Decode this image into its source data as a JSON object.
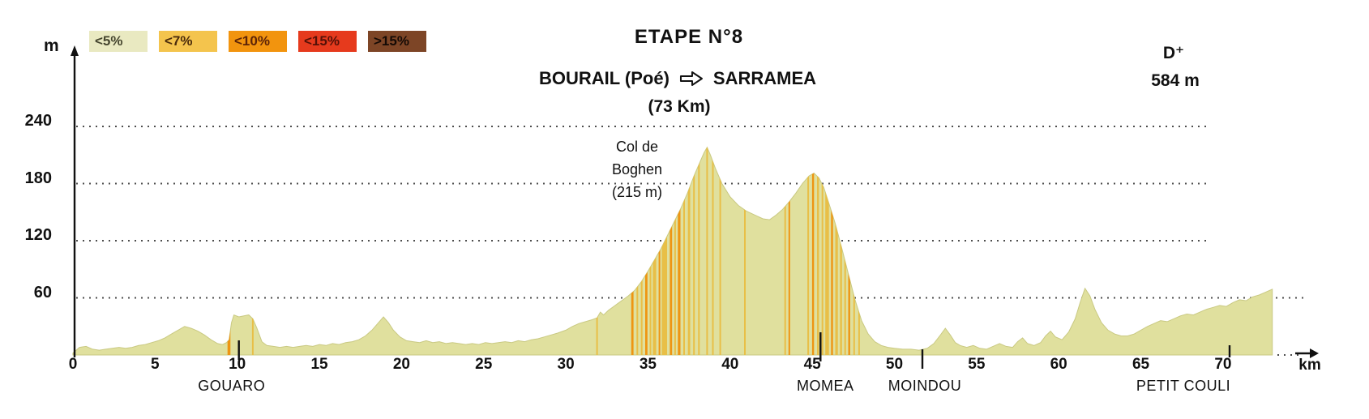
{
  "header": {
    "stage": "ETAPE N°8",
    "from": "BOURAIL (Poé)",
    "to": "SARRAMEA",
    "distance": "(73 Km)"
  },
  "elevation_gain": {
    "label": "D⁺",
    "value": "584 m"
  },
  "legend": {
    "items": [
      {
        "label": "<5%",
        "color": "#e9e9c1",
        "text_color": "#45452e"
      },
      {
        "label": "<7%",
        "color": "#f4c44d",
        "text_color": "#4b2c0c"
      },
      {
        "label": "<10%",
        "color": "#f2940e",
        "text_color": "#5d2408"
      },
      {
        "label": "<15%",
        "color": "#e63a1d",
        "text_color": "#551108"
      },
      {
        "label": ">15%",
        "color": "#7d4526",
        "text_color": "#140a05"
      }
    ]
  },
  "axes": {
    "y_unit": "m",
    "x_unit": "km"
  },
  "annotation": {
    "lines": [
      "Col de",
      "Boghen",
      "(215 m)"
    ]
  },
  "places": [
    {
      "name": "GOUARO",
      "km": 10.1
    },
    {
      "name": "MOMEA",
      "km": 45.5
    },
    {
      "name": "MOINDOU",
      "km": 51.7
    },
    {
      "name": "PETIT COULI",
      "km": 70.4
    }
  ],
  "chart_data": {
    "type": "area",
    "title": "ETAPE N°8 — BOURAIL (Poé) → SARRAMEA (73 Km)",
    "xlabel": "km",
    "ylabel": "m",
    "xlim": [
      0,
      73
    ],
    "ylim": [
      0,
      260
    ],
    "x_ticks": [
      0,
      5,
      10,
      15,
      20,
      25,
      30,
      35,
      40,
      45,
      50,
      55,
      60,
      65,
      70
    ],
    "y_ticks": [
      60,
      120,
      180,
      240
    ],
    "grid": "dotted horizontal",
    "legend_position": "top-left",
    "area_color": "#e0e09e",
    "area_edge_color": "#c9c982",
    "stripe_colors": {
      "g": "#e8bf47",
      "o": "#ee9512"
    },
    "summit": {
      "name": "Col de Boghen",
      "elevation_m": 215,
      "km": 38.5
    },
    "total_climb_m": 584,
    "profile_km_m": [
      [
        0,
        2
      ],
      [
        0.4,
        8
      ],
      [
        0.8,
        9
      ],
      [
        1.2,
        6
      ],
      [
        1.6,
        5
      ],
      [
        2,
        6
      ],
      [
        2.4,
        7
      ],
      [
        2.8,
        8
      ],
      [
        3.2,
        7
      ],
      [
        3.6,
        8
      ],
      [
        4,
        10
      ],
      [
        4.4,
        11
      ],
      [
        4.8,
        13
      ],
      [
        5.2,
        15
      ],
      [
        5.6,
        18
      ],
      [
        6,
        22
      ],
      [
        6.4,
        26
      ],
      [
        6.8,
        30
      ],
      [
        7.2,
        28
      ],
      [
        7.6,
        25
      ],
      [
        8,
        21
      ],
      [
        8.4,
        16
      ],
      [
        8.8,
        12
      ],
      [
        9.1,
        11
      ],
      [
        9.35,
        13
      ],
      [
        9.5,
        16
      ],
      [
        9.65,
        34
      ],
      [
        9.8,
        42
      ],
      [
        10.1,
        40
      ],
      [
        10.4,
        41
      ],
      [
        10.7,
        42
      ],
      [
        10.95,
        38
      ],
      [
        11.2,
        28
      ],
      [
        11.5,
        14
      ],
      [
        11.8,
        10
      ],
      [
        12.2,
        9
      ],
      [
        12.6,
        8
      ],
      [
        13,
        9
      ],
      [
        13.4,
        8
      ],
      [
        13.8,
        9
      ],
      [
        14.2,
        10
      ],
      [
        14.6,
        9
      ],
      [
        15,
        11
      ],
      [
        15.4,
        10
      ],
      [
        15.8,
        12
      ],
      [
        16.2,
        11
      ],
      [
        16.6,
        13
      ],
      [
        17,
        14
      ],
      [
        17.4,
        16
      ],
      [
        17.8,
        20
      ],
      [
        18.2,
        26
      ],
      [
        18.6,
        34
      ],
      [
        18.9,
        40
      ],
      [
        19.2,
        34
      ],
      [
        19.5,
        26
      ],
      [
        19.9,
        19
      ],
      [
        20.3,
        15
      ],
      [
        20.7,
        14
      ],
      [
        21.1,
        13
      ],
      [
        21.5,
        15
      ],
      [
        21.9,
        13
      ],
      [
        22.3,
        14
      ],
      [
        22.7,
        12
      ],
      [
        23.1,
        13
      ],
      [
        23.5,
        12
      ],
      [
        23.9,
        11
      ],
      [
        24.3,
        12
      ],
      [
        24.7,
        11
      ],
      [
        25.1,
        13
      ],
      [
        25.5,
        12
      ],
      [
        25.9,
        13
      ],
      [
        26.3,
        14
      ],
      [
        26.7,
        13
      ],
      [
        27.1,
        15
      ],
      [
        27.5,
        14
      ],
      [
        27.9,
        16
      ],
      [
        28.3,
        17
      ],
      [
        28.7,
        19
      ],
      [
        29.1,
        21
      ],
      [
        29.5,
        23
      ],
      [
        30,
        26
      ],
      [
        30.4,
        30
      ],
      [
        30.8,
        33
      ],
      [
        31.2,
        35
      ],
      [
        31.6,
        37
      ],
      [
        31.9,
        39
      ],
      [
        32.1,
        45
      ],
      [
        32.3,
        42
      ],
      [
        32.6,
        47
      ],
      [
        33,
        52
      ],
      [
        33.4,
        57
      ],
      [
        33.8,
        62
      ],
      [
        34.2,
        68
      ],
      [
        34.6,
        77
      ],
      [
        35,
        88
      ],
      [
        35.4,
        100
      ],
      [
        35.8,
        112
      ],
      [
        36.2,
        126
      ],
      [
        36.6,
        140
      ],
      [
        37,
        154
      ],
      [
        37.4,
        170
      ],
      [
        37.8,
        188
      ],
      [
        38.1,
        200
      ],
      [
        38.4,
        212
      ],
      [
        38.6,
        218
      ],
      [
        38.8,
        210
      ],
      [
        39.1,
        196
      ],
      [
        39.5,
        180
      ],
      [
        40,
        166
      ],
      [
        40.5,
        157
      ],
      [
        41,
        151
      ],
      [
        41.5,
        147
      ],
      [
        42,
        143
      ],
      [
        42.4,
        142
      ],
      [
        42.8,
        147
      ],
      [
        43.2,
        153
      ],
      [
        43.6,
        161
      ],
      [
        44,
        170
      ],
      [
        44.4,
        180
      ],
      [
        44.8,
        188
      ],
      [
        45.1,
        191
      ],
      [
        45.4,
        186
      ],
      [
        45.7,
        176
      ],
      [
        46,
        160
      ],
      [
        46.4,
        138
      ],
      [
        46.8,
        112
      ],
      [
        47.2,
        85
      ],
      [
        47.6,
        58
      ],
      [
        48,
        36
      ],
      [
        48.4,
        22
      ],
      [
        48.8,
        14
      ],
      [
        49.2,
        10
      ],
      [
        49.6,
        8
      ],
      [
        50,
        7
      ],
      [
        50.5,
        6
      ],
      [
        51,
        6
      ],
      [
        51.5,
        5
      ],
      [
        52,
        7
      ],
      [
        52.4,
        12
      ],
      [
        52.8,
        21
      ],
      [
        53.1,
        28
      ],
      [
        53.4,
        21
      ],
      [
        53.7,
        13
      ],
      [
        54,
        10
      ],
      [
        54.4,
        8
      ],
      [
        54.8,
        10
      ],
      [
        55.2,
        7
      ],
      [
        55.6,
        6
      ],
      [
        56,
        9
      ],
      [
        56.4,
        12
      ],
      [
        56.8,
        9
      ],
      [
        57.2,
        8
      ],
      [
        57.5,
        14
      ],
      [
        57.8,
        18
      ],
      [
        58.1,
        12
      ],
      [
        58.5,
        10
      ],
      [
        58.9,
        13
      ],
      [
        59.2,
        20
      ],
      [
        59.5,
        25
      ],
      [
        59.8,
        19
      ],
      [
        60.2,
        16
      ],
      [
        60.6,
        24
      ],
      [
        61,
        38
      ],
      [
        61.3,
        55
      ],
      [
        61.6,
        70
      ],
      [
        61.9,
        62
      ],
      [
        62.2,
        48
      ],
      [
        62.6,
        34
      ],
      [
        63,
        26
      ],
      [
        63.4,
        22
      ],
      [
        63.8,
        20
      ],
      [
        64.2,
        20
      ],
      [
        64.6,
        22
      ],
      [
        65,
        26
      ],
      [
        65.4,
        30
      ],
      [
        65.8,
        33
      ],
      [
        66.2,
        36
      ],
      [
        66.6,
        35
      ],
      [
        67,
        38
      ],
      [
        67.4,
        41
      ],
      [
        67.8,
        43
      ],
      [
        68.2,
        42
      ],
      [
        68.6,
        45
      ],
      [
        69,
        48
      ],
      [
        69.4,
        50
      ],
      [
        69.8,
        52
      ],
      [
        70.2,
        51
      ],
      [
        70.6,
        55
      ],
      [
        71,
        58
      ],
      [
        71.4,
        57
      ],
      [
        71.8,
        61
      ],
      [
        72.2,
        63
      ],
      [
        72.6,
        66
      ],
      [
        73,
        69
      ]
    ],
    "gradient_stripes_km_w_color": [
      [
        9.5,
        0.18,
        "o"
      ],
      [
        10.95,
        0.1,
        "g"
      ],
      [
        31.9,
        0.08,
        "g"
      ],
      [
        34.05,
        0.14,
        "o"
      ],
      [
        34.35,
        0.1,
        "g"
      ],
      [
        34.62,
        0.1,
        "g"
      ],
      [
        34.9,
        0.14,
        "o"
      ],
      [
        35.15,
        0.1,
        "g"
      ],
      [
        35.4,
        0.2,
        "g"
      ],
      [
        35.7,
        0.1,
        "o"
      ],
      [
        36.0,
        0.32,
        "g"
      ],
      [
        36.4,
        0.14,
        "o"
      ],
      [
        36.65,
        0.1,
        "g"
      ],
      [
        36.9,
        0.16,
        "o"
      ],
      [
        37.2,
        0.1,
        "g"
      ],
      [
        37.5,
        0.14,
        "g"
      ],
      [
        37.8,
        0.1,
        "g"
      ],
      [
        38.1,
        0.08,
        "g"
      ],
      [
        38.6,
        0.08,
        "g"
      ],
      [
        38.95,
        0.1,
        "g"
      ],
      [
        39.4,
        0.07,
        "g"
      ],
      [
        40.9,
        0.07,
        "g"
      ],
      [
        43.35,
        0.08,
        "g"
      ],
      [
        43.6,
        0.1,
        "o"
      ],
      [
        44.75,
        0.1,
        "g"
      ],
      [
        45.05,
        0.12,
        "o"
      ],
      [
        45.35,
        0.12,
        "g"
      ],
      [
        45.62,
        0.1,
        "g"
      ],
      [
        45.9,
        0.22,
        "g"
      ],
      [
        46.2,
        0.12,
        "o"
      ],
      [
        46.48,
        0.16,
        "g"
      ],
      [
        46.75,
        0.12,
        "g"
      ],
      [
        47.0,
        0.1,
        "g"
      ],
      [
        47.25,
        0.12,
        "o"
      ],
      [
        47.55,
        0.1,
        "g"
      ],
      [
        47.85,
        0.07,
        "g"
      ]
    ]
  }
}
